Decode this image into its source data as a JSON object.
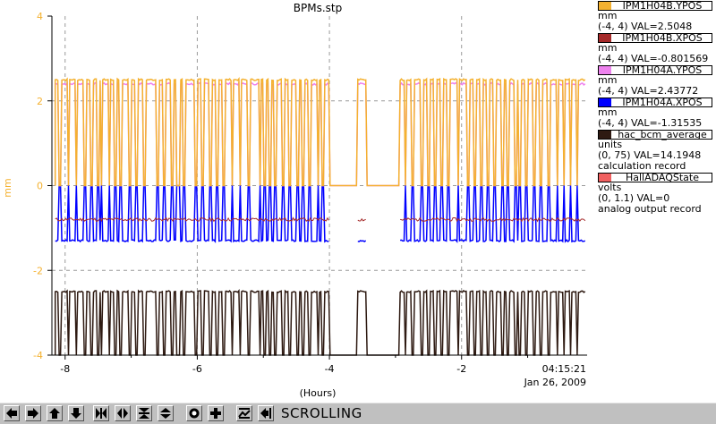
{
  "chart_data": {
    "type": "line",
    "title": "BPMs.stp",
    "xlabel": "(Hours)",
    "ylabel": "mm",
    "xlim": [
      -8.2,
      -0.1
    ],
    "ylim": [
      -4,
      4
    ],
    "xticks": [
      "-8",
      "-6",
      "-4",
      "-2"
    ],
    "yticks": [
      "-4",
      "-2",
      "0",
      "2",
      "4"
    ],
    "grid": true,
    "timestamp": {
      "time": "04:15:21",
      "date": "Jan 26, 2009"
    },
    "series": [
      {
        "name": "IPM1H04B.YPOS",
        "color": "#f4b130",
        "high": 2.5,
        "low": 0,
        "units": "mm",
        "range": "(-4, 4)",
        "val": "VAL=2.5048"
      },
      {
        "name": "IPM1H04B.XPOS",
        "color": "#a52a2a",
        "base": -0.8,
        "units": "mm",
        "range": "(-4, 4)",
        "val": "VAL=-0.801569"
      },
      {
        "name": "IPM1H04A.YPOS",
        "color": "#ee82ee",
        "high": 2.4,
        "low": 0,
        "units": "mm",
        "range": "(-4, 4)",
        "val": "VAL=2.43772"
      },
      {
        "name": "IPM1H04A.XPOS",
        "color": "#0000ff",
        "high": 0,
        "low": -1.3,
        "units": "mm",
        "range": "(-4, 4)",
        "val": "VAL=-1.31535"
      },
      {
        "name": "hac_bcm_average",
        "color": "#2e1a12",
        "high": -2.5,
        "low": -4,
        "units": "units",
        "range": "(0, 75)",
        "val": "VAL=14.1948",
        "extra": "calculation record"
      },
      {
        "name": "HallADAQState",
        "color": "#f06060",
        "units": "volts",
        "range": "(0, 1.1)",
        "val": "VAL=0",
        "extra": "analog output record"
      }
    ],
    "trip_times": [
      -8.08,
      -7.95,
      -7.83,
      -7.7,
      -7.6,
      -7.5,
      -7.45,
      -7.33,
      -7.24,
      -7.16,
      -7.02,
      -6.92,
      -6.8,
      -6.6,
      -6.5,
      -6.38,
      -6.3,
      -6.27,
      -6.2,
      -6.02,
      -5.92,
      -5.8,
      -5.7,
      -5.6,
      -5.47,
      -5.35,
      -5.22,
      -5.05,
      -4.98,
      -4.9,
      -4.82,
      -4.7,
      -4.6,
      -4.48,
      -4.4,
      -4.3,
      -4.17,
      -4.1,
      -3.05,
      -2.95,
      -2.85,
      -2.74,
      -2.6,
      -2.5,
      -2.4,
      -2.3,
      -2.2,
      -2.05,
      -1.9,
      -1.8,
      -1.7,
      -1.6,
      -1.5,
      -1.38,
      -1.3,
      -1.18,
      -1.12,
      -1.02,
      -0.9,
      -0.8,
      -0.68,
      -0.55,
      -0.45,
      -0.35,
      -0.25
    ],
    "off_intervals": [
      [
        -4.0,
        -3.58
      ],
      [
        -3.45,
        -2.95
      ]
    ]
  },
  "toolbar": {
    "status": "SCROLLING",
    "buttons": [
      "arrow-left-icon",
      "arrow-right-icon",
      "arrow-up-icon",
      "arrow-down-icon",
      "bowtie-horizontal-icon",
      "diamond-horizontal-icon",
      "bowtie-vertical-icon",
      "diamond-vertical-icon",
      "circle-target-icon",
      "crosshair-icon",
      "mountain-icon",
      "arrow-left-bar-icon"
    ]
  }
}
